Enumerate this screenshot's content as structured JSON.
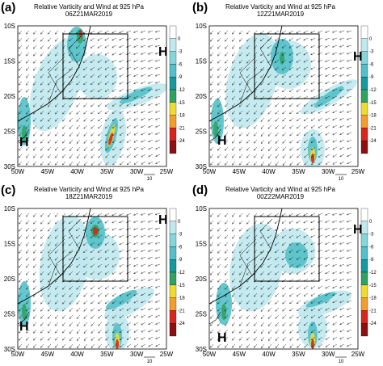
{
  "colors": {
    "vort_light": "#bfe9ee",
    "vort_mid": "#52c1c9",
    "vort_dark": "#159aa0",
    "vort_green": "#2fa361",
    "vort_yellow": "#f0dc30",
    "vort_orange": "#f59d2a",
    "vort_red": "#d8251e",
    "vort_darkred": "#8e0f12",
    "arrow": "#222222",
    "coast": "#000000"
  },
  "axes": {
    "y_ticks": [
      "10S",
      "15S",
      "20S",
      "25S",
      "30S"
    ],
    "x_ticks": [
      "50W",
      "45W",
      "40W",
      "35W",
      "30W",
      "25W"
    ]
  },
  "colorbar": {
    "ticks": [
      "0",
      "-3",
      "-6",
      "-9",
      "-12",
      "-15",
      "-18",
      "-21",
      "-24"
    ]
  },
  "reference_vector": "10",
  "panels": [
    {
      "label": "(a)",
      "title": "Relative Varticity and Wind at 925 hPa",
      "time": "06Z21MAR2019",
      "h_labels": [
        "H",
        "H"
      ]
    },
    {
      "label": "(b)",
      "title": "Relative Varticity and Wind at 925 hPa",
      "time": "12Z21MAR2019",
      "h_labels": [
        "H",
        "H"
      ]
    },
    {
      "label": "(c)",
      "title": "Relative Varticity and Wind at 925 hPa",
      "time": "18Z21MAR2019",
      "h_labels": [
        "H",
        "H"
      ]
    },
    {
      "label": "(d)",
      "title": "Relative Varticity and Wind at 925 hPa",
      "time": "00Z22MAR2019",
      "h_labels": [
        "H",
        "H"
      ]
    }
  ]
}
